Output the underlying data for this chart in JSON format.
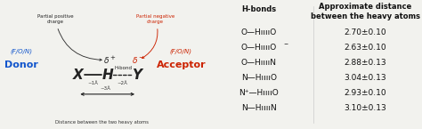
{
  "bg_color": "#f2f2ee",
  "left_panel": {
    "donor_color": "#1155cc",
    "acceptor_color": "#cc2200",
    "partial_pos": "Partial positive\ncharge",
    "partial_neg": "Partial negative\ncharge",
    "hbond_label": "H-bond",
    "bond1_label": "~1Å",
    "bond2_label": "~2Å",
    "bond3_label": "~3Å",
    "distance_label": "Distance between the two heavy atoms"
  },
  "right_panel": {
    "col1_header": "H-bonds",
    "col2_header": "Approximate distance\nbetween the heavy atoms",
    "rows": [
      {
        "bond": "O—HııııO",
        "sup": "",
        "dist": "2.70±0.10"
      },
      {
        "bond": "O—HııııO",
        "sup": "−",
        "dist": "2.63±0.10"
      },
      {
        "bond": "O—HııııN",
        "sup": "",
        "dist": "2.88±0.13"
      },
      {
        "bond": "N—HııııO",
        "sup": "",
        "dist": "3.04±0.13"
      },
      {
        "bond": "N⁺—HııııO",
        "sup": "",
        "dist": "2.93±0.10"
      },
      {
        "bond": "N—HııııN",
        "sup": "",
        "dist": "3.10±0.13"
      }
    ]
  }
}
